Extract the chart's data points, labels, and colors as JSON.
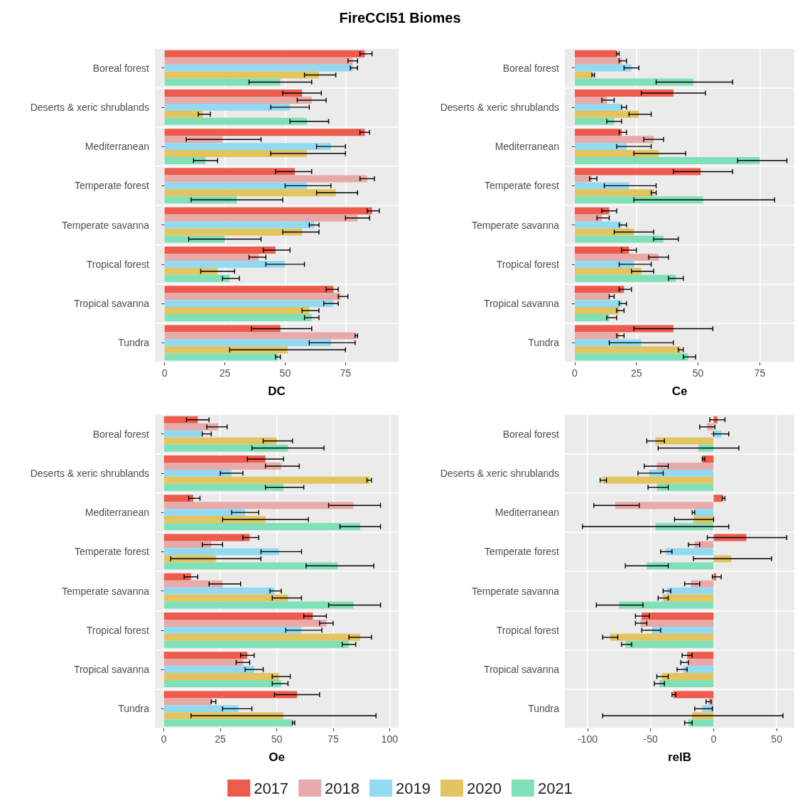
{
  "chart_data": [
    {
      "type": "bar",
      "title": "FireCCI51 Biomes",
      "orientation": "horizontal",
      "xlabel": "DC",
      "legend": "bottom",
      "grid": true,
      "categories": [
        "Boreal forest",
        "Deserts & xeric shrublands",
        "Mediterranean",
        "Temperate forest",
        "Temperate savanna",
        "Tropical forest",
        "Tropical savanna",
        "Tundra"
      ],
      "xlim": [
        -4,
        97
      ],
      "xticks": [
        0,
        25,
        50,
        75
      ],
      "series": [
        {
          "name": "2017",
          "color": "#ee5a4c",
          "values": [
            83,
            57,
            83,
            54,
            86,
            46,
            70,
            48
          ],
          "errors": [
            [
              81,
              86
            ],
            [
              49,
              65
            ],
            [
              81,
              85
            ],
            [
              46,
              61
            ],
            [
              84,
              89
            ],
            [
              41,
              52
            ],
            [
              67,
              72
            ],
            [
              36,
              61
            ]
          ]
        },
        {
          "name": "2018",
          "color": "#e8aaa8",
          "values": [
            78,
            61,
            24,
            84,
            80,
            39,
            73,
            79
          ],
          "errors": [
            [
              76,
              80
            ],
            [
              55,
              67
            ],
            [
              9,
              40
            ],
            [
              81,
              87
            ],
            [
              75,
              85
            ],
            [
              35,
              42
            ],
            [
              72,
              76
            ],
            [
              79,
              80
            ]
          ]
        },
        {
          "name": "2019",
          "color": "#92d9f2",
          "values": [
            78,
            52,
            69,
            59,
            62,
            50,
            70,
            69
          ],
          "errors": [
            [
              77,
              80
            ],
            [
              44,
              60
            ],
            [
              63,
              75
            ],
            [
              50,
              69
            ],
            [
              60,
              64
            ],
            [
              42,
              58
            ],
            [
              66,
              72
            ],
            [
              60,
              79
            ]
          ]
        },
        {
          "name": "2020",
          "color": "#e2c461",
          "values": [
            64,
            16,
            59,
            71,
            57,
            22,
            60,
            51
          ],
          "errors": [
            [
              58,
              71
            ],
            [
              14,
              19
            ],
            [
              44,
              75
            ],
            [
              63,
              80
            ],
            [
              49,
              64
            ],
            [
              15,
              29
            ],
            [
              57,
              64
            ],
            [
              27,
              75
            ]
          ]
        },
        {
          "name": "2021",
          "color": "#80e0b8",
          "values": [
            48,
            59,
            17,
            30,
            25,
            27,
            61,
            47
          ],
          "errors": [
            [
              35,
              61
            ],
            [
              52,
              68
            ],
            [
              12,
              22
            ],
            [
              11,
              49
            ],
            [
              10,
              40
            ],
            [
              24,
              31
            ],
            [
              58,
              64
            ],
            [
              46,
              48
            ]
          ]
        }
      ]
    },
    {
      "type": "bar",
      "orientation": "horizontal",
      "xlabel": "Ce",
      "grid": true,
      "categories": [
        "Boreal forest",
        "Deserts & xeric shrublands",
        "Mediterranean",
        "Temperate forest",
        "Temperate savanna",
        "Tropical forest",
        "Tropical savanna",
        "Tundra"
      ],
      "xlim": [
        -4,
        89
      ],
      "xticks": [
        0,
        25,
        50,
        75
      ],
      "series": [
        {
          "name": "2017",
          "color": "#ee5a4c",
          "values": [
            17,
            40,
            19,
            51,
            14,
            22,
            20,
            40
          ],
          "errors": [
            [
              17,
              18
            ],
            [
              27,
              53
            ],
            [
              18,
              21
            ],
            [
              40,
              64
            ],
            [
              11,
              17
            ],
            [
              19,
              25
            ],
            [
              18,
              23
            ],
            [
              24,
              56
            ]
          ]
        },
        {
          "name": "2018",
          "color": "#e8aaa8",
          "values": [
            19,
            13,
            32,
            7,
            11,
            34,
            14,
            18
          ],
          "errors": [
            [
              18,
              21
            ],
            [
              11,
              16
            ],
            [
              28,
              36
            ],
            [
              6,
              9
            ],
            [
              9,
              14
            ],
            [
              30,
              38
            ],
            [
              14,
              16
            ],
            [
              17,
              20
            ]
          ]
        },
        {
          "name": "2019",
          "color": "#92d9f2",
          "values": [
            23,
            19,
            21,
            22,
            19,
            24,
            19,
            27
          ],
          "errors": [
            [
              20,
              26
            ],
            [
              19,
              21
            ],
            [
              17,
              31
            ],
            [
              12,
              33
            ],
            [
              18,
              21
            ],
            [
              18,
              31
            ],
            [
              18,
              21
            ],
            [
              14,
              40
            ]
          ]
        },
        {
          "name": "2020",
          "color": "#e2c461",
          "values": [
            7,
            26,
            34,
            32,
            24,
            27,
            18,
            43
          ],
          "errors": [
            [
              7,
              8
            ],
            [
              22,
              31
            ],
            [
              24,
              45
            ],
            [
              31,
              33
            ],
            [
              16,
              32
            ],
            [
              23,
              32
            ],
            [
              17,
              20
            ],
            [
              42,
              44
            ]
          ]
        },
        {
          "name": "2021",
          "color": "#80e0b8",
          "values": [
            48,
            16,
            75,
            52,
            36,
            41,
            14,
            46
          ],
          "errors": [
            [
              33,
              64
            ],
            [
              13,
              19
            ],
            [
              66,
              86
            ],
            [
              24,
              81
            ],
            [
              32,
              42
            ],
            [
              38,
              44
            ],
            [
              13,
              17
            ],
            [
              44,
              49
            ]
          ]
        }
      ]
    },
    {
      "type": "bar",
      "orientation": "horizontal",
      "xlabel": "Oe",
      "grid": true,
      "categories": [
        "Boreal forest",
        "Deserts & xeric shrublands",
        "Mediterranean",
        "Temperate forest",
        "Temperate savanna",
        "Tropical forest",
        "Tropical savanna",
        "Tundra"
      ],
      "xlim": [
        -4,
        104
      ],
      "xticks": [
        0,
        25,
        50,
        75,
        100
      ],
      "series": [
        {
          "name": "2017",
          "color": "#ee5a4c",
          "values": [
            15,
            45,
            13,
            38,
            12,
            66,
            37,
            59
          ],
          "errors": [
            [
              10,
              20
            ],
            [
              37,
              53
            ],
            [
              11,
              16
            ],
            [
              35,
              42
            ],
            [
              9,
              15
            ],
            [
              62,
              72
            ],
            [
              34,
              40
            ],
            [
              49,
              69
            ]
          ]
        },
        {
          "name": "2018",
          "color": "#e8aaa8",
          "values": [
            24,
            52,
            84,
            21,
            26,
            72,
            35,
            21
          ],
          "errors": [
            [
              19,
              28
            ],
            [
              45,
              60
            ],
            [
              73,
              96
            ],
            [
              17,
              26
            ],
            [
              20,
              34
            ],
            [
              69,
              75
            ],
            [
              32,
              38
            ],
            [
              21,
              23
            ]
          ]
        },
        {
          "name": "2019",
          "color": "#92d9f2",
          "values": [
            17,
            30,
            36,
            51,
            49,
            61,
            40,
            33
          ],
          "errors": [
            [
              17,
              21
            ],
            [
              25,
              35
            ],
            [
              30,
              42
            ],
            [
              43,
              61
            ],
            [
              47,
              52
            ],
            [
              54,
              70
            ],
            [
              36,
              44
            ],
            [
              26,
              39
            ]
          ]
        },
        {
          "name": "2020",
          "color": "#e2c461",
          "values": [
            50,
            91,
            45,
            23,
            55,
            87,
            51,
            53
          ],
          "errors": [
            [
              44,
              57
            ],
            [
              90,
              92
            ],
            [
              26,
              64
            ],
            [
              3,
              43
            ],
            [
              48,
              61
            ],
            [
              82,
              92
            ],
            [
              48,
              56
            ],
            [
              12,
              94
            ]
          ]
        },
        {
          "name": "2021",
          "color": "#80e0b8",
          "values": [
            55,
            53,
            87,
            77,
            84,
            82,
            52,
            57
          ],
          "errors": [
            [
              39,
              71
            ],
            [
              45,
              62
            ],
            [
              78,
              96
            ],
            [
              63,
              93
            ],
            [
              73,
              96
            ],
            [
              79,
              85
            ],
            [
              48,
              55
            ],
            [
              57,
              58
            ]
          ]
        }
      ]
    },
    {
      "type": "bar",
      "orientation": "horizontal",
      "xlabel": "relB",
      "grid": true,
      "categories": [
        "Boreal forest",
        "Deserts & xeric shrublands",
        "Mediterranean",
        "Temperate forest",
        "Temperate savanna",
        "Tropical forest",
        "Tropical savanna",
        "Tundra"
      ],
      "xlim": [
        -118,
        64
      ],
      "xticks": [
        -100,
        -50,
        0,
        50
      ],
      "series": [
        {
          "name": "2017",
          "color": "#ee5a4c",
          "values": [
            3,
            -9,
            7,
            26,
            2,
            -57,
            -21,
            -32
          ],
          "errors": [
            [
              -3,
              9
            ],
            [
              -9,
              -7
            ],
            [
              7,
              9
            ],
            [
              -5,
              58
            ],
            [
              -1,
              6
            ],
            [
              -62,
              -51
            ],
            [
              -25,
              -17
            ],
            [
              -33,
              -30
            ]
          ]
        },
        {
          "name": "2018",
          "color": "#e8aaa8",
          "values": [
            -5,
            -45,
            -78,
            -15,
            -18,
            -58,
            -20,
            -4
          ],
          "errors": [
            [
              -11,
              1
            ],
            [
              -55,
              -36
            ],
            [
              -95,
              -59
            ],
            [
              -20,
              -11
            ],
            [
              -23,
              -11
            ],
            [
              -62,
              -53
            ],
            [
              -26,
              -20
            ],
            [
              -6,
              -2
            ]
          ]
        },
        {
          "name": "2019",
          "color": "#92d9f2",
          "values": [
            6,
            -51,
            -15,
            -38,
            -37,
            -49,
            -24,
            -9
          ],
          "errors": [
            [
              0,
              12
            ],
            [
              -60,
              -40
            ],
            [
              -17,
              -15
            ],
            [
              -42,
              -33
            ],
            [
              -40,
              -34
            ],
            [
              -57,
              -42
            ],
            [
              -29,
              -21
            ],
            [
              -15,
              -1
            ]
          ]
        },
        {
          "name": "2020",
          "color": "#e2c461",
          "values": [
            -46,
            -88,
            -16,
            14,
            -40,
            -82,
            -41,
            -17
          ],
          "errors": [
            [
              -53,
              -39
            ],
            [
              -90,
              -85
            ],
            [
              -31,
              0
            ],
            [
              -16,
              46
            ],
            [
              -44,
              -36
            ],
            [
              -88,
              -76
            ],
            [
              -45,
              -36
            ],
            [
              -88,
              55
            ]
          ]
        },
        {
          "name": "2021",
          "color": "#80e0b8",
          "values": [
            -12,
            -45,
            -46,
            -53,
            -75,
            -70,
            -43,
            -20
          ],
          "errors": [
            [
              -44,
              20
            ],
            [
              -52,
              -36
            ],
            [
              -104,
              12
            ],
            [
              -70,
              -36
            ],
            [
              -93,
              -56
            ],
            [
              -73,
              -65
            ],
            [
              -47,
              -39
            ],
            [
              -23,
              -17
            ]
          ]
        }
      ]
    }
  ]
}
